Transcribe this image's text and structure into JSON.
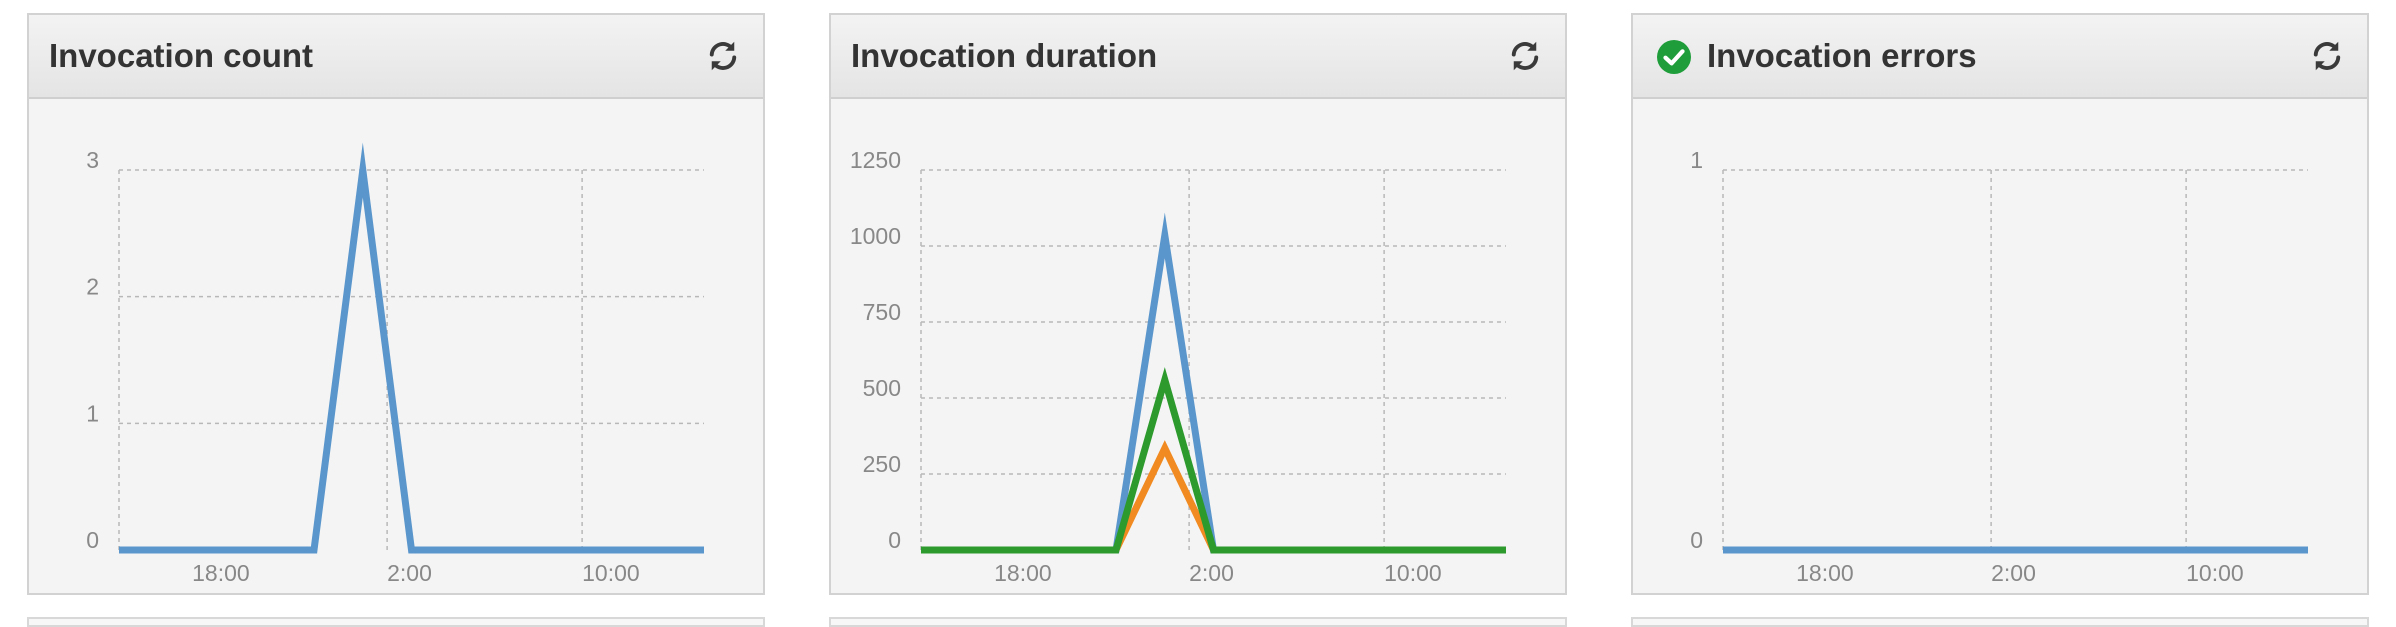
{
  "colors": {
    "blue": "#5a96cc",
    "green": "#2c9a2c",
    "orange": "#f08a21",
    "check_green": "#1e9d3a"
  },
  "panels": [
    {
      "title": "Invocation count",
      "status_icon": null,
      "refresh_icon": "refresh-icon"
    },
    {
      "title": "Invocation duration",
      "status_icon": null,
      "refresh_icon": "refresh-icon"
    },
    {
      "title": "Invocation errors",
      "status_icon": "check-circle-icon",
      "refresh_icon": "refresh-icon"
    }
  ],
  "chart_data": [
    {
      "type": "line",
      "title": "Invocation count",
      "x_ticks": [
        "18:00",
        "2:00",
        "10:00"
      ],
      "y_ticks": [
        "0",
        "1",
        "2",
        "3"
      ],
      "ylim": [
        0,
        3
      ],
      "grid": true,
      "series": [
        {
          "color": "#5a96cc",
          "points": [
            [
              "15:00",
              0
            ],
            [
              "23:00",
              0
            ],
            [
              "01:00",
              3
            ],
            [
              "03:00",
              0
            ],
            [
              "15:00 (+1)",
              0
            ]
          ]
        }
      ]
    },
    {
      "type": "line",
      "title": "Invocation duration",
      "x_ticks": [
        "18:00",
        "2:00",
        "10:00"
      ],
      "y_ticks": [
        "0",
        "250",
        "500",
        "750",
        "1000",
        "1250"
      ],
      "ylim": [
        0,
        1250
      ],
      "grid": true,
      "series": [
        {
          "color": "#5a96cc",
          "points": [
            [
              "15:00",
              0
            ],
            [
              "23:00",
              0
            ],
            [
              "01:00",
              1035
            ],
            [
              "03:00",
              0
            ],
            [
              "15:00 (+1)",
              0
            ]
          ]
        },
        {
          "color": "#f08a21",
          "points": [
            [
              "15:00",
              0
            ],
            [
              "23:00",
              0
            ],
            [
              "01:00",
              335
            ],
            [
              "03:00",
              0
            ],
            [
              "15:00 (+1)",
              0
            ]
          ]
        },
        {
          "color": "#2c9a2c",
          "points": [
            [
              "15:00",
              0
            ],
            [
              "23:00",
              0
            ],
            [
              "01:00",
              560
            ],
            [
              "03:00",
              0
            ],
            [
              "15:00 (+1)",
              0
            ]
          ]
        }
      ]
    },
    {
      "type": "line",
      "title": "Invocation errors",
      "x_ticks": [
        "18:00",
        "2:00",
        "10:00"
      ],
      "y_ticks": [
        "0",
        "1"
      ],
      "ylim": [
        0,
        1
      ],
      "grid": true,
      "series": [
        {
          "color": "#5a96cc",
          "points": [
            [
              "15:00",
              0
            ],
            [
              "15:00 (+1)",
              0
            ]
          ]
        }
      ]
    }
  ]
}
